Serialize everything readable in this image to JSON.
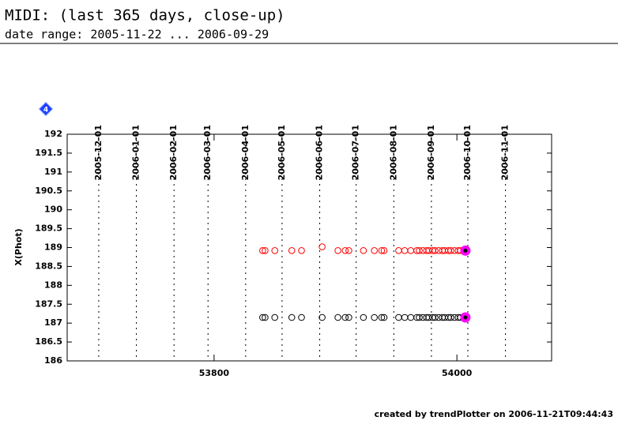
{
  "chart_data": {
    "type": "scatter",
    "title": "MIDI: (last 365 days, close-up)",
    "subtitle": "date range: 2005-11-22 ... 2006-09-29",
    "y_label": "X(Phot)",
    "footer": "created by trendPlotter on 2006-11-21T09:44:43",
    "badge": "4",
    "xlim": [
      53679,
      54078
    ],
    "ylim": [
      186,
      192
    ],
    "xticks": [
      53800,
      54000
    ],
    "yticks": [
      186,
      186.5,
      187,
      187.5,
      188,
      188.5,
      189,
      189.5,
      190,
      190.5,
      191,
      191.5,
      192
    ],
    "date_markers": {
      "labels": [
        "2005-12-01",
        "2006-01-01",
        "2006-02-01",
        "2006-03-01",
        "2006-04-01",
        "2006-05-01",
        "2006-06-01",
        "2006-07-01",
        "2006-08-01",
        "2006-09-01",
        "2006-10-01",
        "2006-11-01"
      ],
      "x": [
        53705,
        53736,
        53767,
        53795,
        53826,
        53856,
        53887,
        53917,
        53948,
        53979,
        54009,
        54040
      ]
    },
    "series": [
      {
        "color": "#ff0000",
        "marker": "open",
        "x": [
          53840,
          53842,
          53850,
          53864,
          53872,
          53889,
          53902,
          53908,
          53911,
          53923,
          53932,
          53938,
          53940,
          53952,
          53957,
          53962,
          53967,
          53969,
          53972,
          53975,
          53977,
          53980,
          53982,
          53985,
          53988,
          53990,
          53993,
          53995,
          53998,
          54001,
          54003
        ],
        "values": [
          188.92,
          188.92,
          188.92,
          188.92,
          188.92,
          189.02,
          188.92,
          188.92,
          188.92,
          188.92,
          188.92,
          188.92,
          188.92,
          188.92,
          188.92,
          188.92,
          188.92,
          188.92,
          188.92,
          188.92,
          188.92,
          188.92,
          188.92,
          188.92,
          188.92,
          188.92,
          188.92,
          188.92,
          188.92,
          188.92,
          188.92
        ]
      },
      {
        "color": "#000000",
        "marker": "open",
        "x": [
          53840,
          53842,
          53850,
          53864,
          53872,
          53889,
          53902,
          53908,
          53911,
          53923,
          53932,
          53938,
          53940,
          53952,
          53957,
          53962,
          53967,
          53969,
          53972,
          53975,
          53977,
          53980,
          53982,
          53985,
          53988,
          53990,
          53993,
          53995,
          53998,
          54001,
          54003
        ],
        "values": [
          187.15,
          187.15,
          187.15,
          187.15,
          187.15,
          187.15,
          187.15,
          187.15,
          187.15,
          187.15,
          187.15,
          187.15,
          187.15,
          187.15,
          187.15,
          187.15,
          187.15,
          187.15,
          187.15,
          187.15,
          187.15,
          187.15,
          187.15,
          187.15,
          187.15,
          187.15,
          187.15,
          187.15,
          187.15,
          187.15,
          187.15
        ]
      },
      {
        "color": "#ff00ff",
        "marker": "filled",
        "x": [
          54007,
          54007
        ],
        "values": [
          188.92,
          187.15
        ]
      }
    ]
  }
}
